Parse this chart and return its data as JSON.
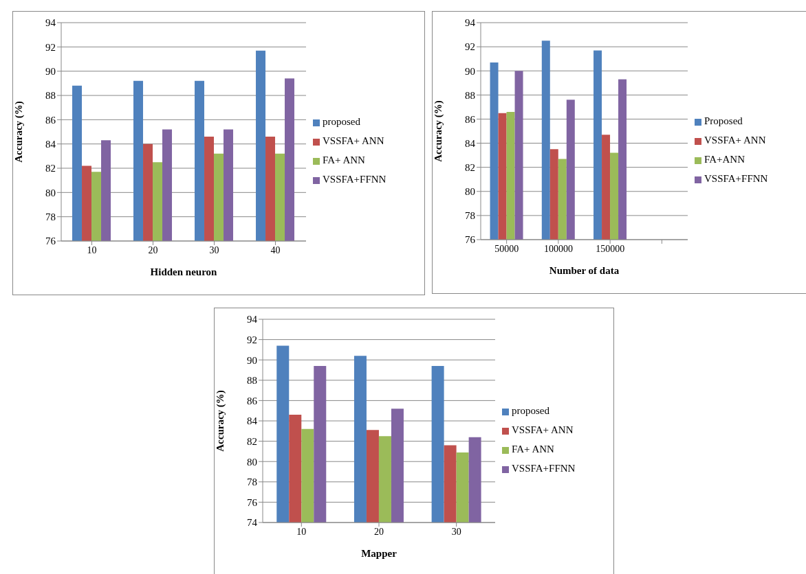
{
  "chart_data": [
    {
      "type": "bar",
      "xlabel": "Hidden neuron",
      "ylabel": "Accuracy (%)",
      "categories": [
        "10",
        "20",
        "30",
        "40"
      ],
      "ylim": [
        76,
        94
      ],
      "yticks": [
        76,
        78,
        80,
        82,
        84,
        86,
        88,
        90,
        92,
        94
      ],
      "grid": "y",
      "legend": "right",
      "series": [
        {
          "name": "proposed",
          "color": "#4f81bd",
          "values": [
            88.8,
            89.2,
            89.2,
            91.7
          ]
        },
        {
          "name": "VSSFA+ ANN",
          "color": "#c0504d",
          "values": [
            82.2,
            84.0,
            84.6,
            84.6
          ]
        },
        {
          "name": "FA+ ANN",
          "color": "#9bbb59",
          "values": [
            81.7,
            82.5,
            83.2,
            83.2
          ]
        },
        {
          "name": "VSSFA+FFNN",
          "color": "#8064a2",
          "values": [
            84.3,
            85.2,
            85.2,
            89.4
          ]
        }
      ]
    },
    {
      "type": "bar",
      "xlabel": "Number of data",
      "ylabel": "Accuracy (%)",
      "categories": [
        "50000",
        "100000",
        "150000",
        null
      ],
      "ylim": [
        76,
        94
      ],
      "yticks": [
        76,
        78,
        80,
        82,
        84,
        86,
        88,
        90,
        92,
        94
      ],
      "grid": "y",
      "legend": "right",
      "series": [
        {
          "name": "Proposed",
          "color": "#4f81bd",
          "values": [
            90.7,
            92.5,
            91.7,
            null
          ]
        },
        {
          "name": "VSSFA+ ANN",
          "color": "#c0504d",
          "values": [
            86.5,
            83.5,
            84.7,
            null
          ]
        },
        {
          "name": "FA+ANN",
          "color": "#9bbb59",
          "values": [
            86.6,
            82.7,
            83.2,
            null
          ]
        },
        {
          "name": "VSSFA+FFNN",
          "color": "#8064a2",
          "values": [
            90.0,
            87.6,
            89.3,
            null
          ]
        }
      ]
    },
    {
      "type": "bar",
      "xlabel": "Mapper",
      "ylabel": "Accuracy (%)",
      "categories": [
        "10",
        "20",
        "30"
      ],
      "ylim": [
        74,
        94
      ],
      "yticks": [
        74,
        76,
        78,
        80,
        82,
        84,
        86,
        88,
        90,
        92,
        94
      ],
      "grid": "y",
      "legend": "right",
      "series": [
        {
          "name": "proposed",
          "color": "#4f81bd",
          "values": [
            91.4,
            90.4,
            89.4
          ]
        },
        {
          "name": "VSSFA+ ANN",
          "color": "#c0504d",
          "values": [
            84.6,
            83.1,
            81.6
          ]
        },
        {
          "name": "FA+ ANN",
          "color": "#9bbb59",
          "values": [
            83.2,
            82.5,
            80.9
          ]
        },
        {
          "name": "VSSFA+FFNN",
          "color": "#8064a2",
          "values": [
            89.4,
            85.2,
            82.4
          ]
        }
      ]
    }
  ]
}
